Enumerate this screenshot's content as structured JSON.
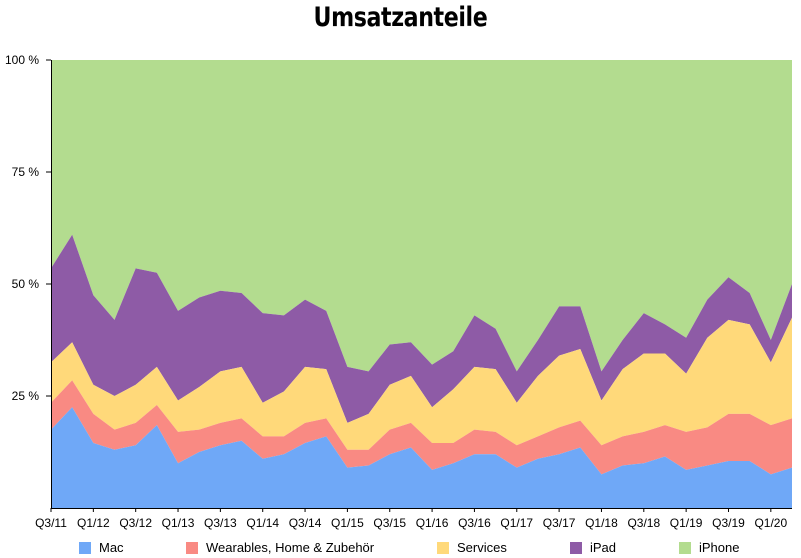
{
  "chart_data": {
    "type": "area",
    "stacked": true,
    "normalized": true,
    "title": "Umsatzanteile",
    "xlabel": "",
    "ylabel": "",
    "ylim": [
      0,
      100
    ],
    "y_ticks": [
      "100 %",
      "75 %",
      "50 %",
      "25 %"
    ],
    "x_tick_labels": [
      "Q3/11",
      "Q1/12",
      "Q3/12",
      "Q1/13",
      "Q3/13",
      "Q1/14",
      "Q3/14",
      "Q1/15",
      "Q3/15",
      "Q1/16",
      "Q3/16",
      "Q1/17",
      "Q3/17",
      "Q1/18",
      "Q3/18",
      "Q1/19",
      "Q3/19",
      "Q1/20"
    ],
    "x": [
      "Q3/11",
      "Q4/11",
      "Q1/12",
      "Q2/12",
      "Q3/12",
      "Q4/12",
      "Q1/13",
      "Q2/13",
      "Q3/13",
      "Q4/13",
      "Q1/14",
      "Q2/14",
      "Q3/14",
      "Q4/14",
      "Q1/15",
      "Q2/15",
      "Q3/15",
      "Q4/15",
      "Q1/16",
      "Q2/16",
      "Q3/16",
      "Q4/16",
      "Q1/17",
      "Q2/17",
      "Q3/17",
      "Q4/17",
      "Q1/18",
      "Q2/18",
      "Q3/18",
      "Q4/18",
      "Q1/19",
      "Q2/19",
      "Q3/19",
      "Q4/19",
      "Q1/20",
      "Q2/20"
    ],
    "series": [
      {
        "name": "Mac",
        "color": "#6fa8f7",
        "values": [
          17.5,
          22.5,
          14.5,
          13,
          14,
          18.5,
          10,
          12.5,
          14,
          15,
          11,
          12,
          14.5,
          16,
          9,
          9.5,
          12,
          13.5,
          8.5,
          10,
          12,
          12,
          9,
          11,
          12,
          13.5,
          7.5,
          9.5,
          10,
          11.5,
          8.5,
          9.5,
          10.5,
          10.5,
          7.5,
          9
        ]
      },
      {
        "name": "Wearables, Home & Zubehör",
        "color": "#f98a83",
        "values": [
          6,
          6,
          6.5,
          4.5,
          5,
          4.5,
          7,
          5,
          5,
          5,
          5,
          4,
          4.5,
          4,
          4,
          3.5,
          5.5,
          5.5,
          6,
          4.5,
          5.5,
          5,
          5,
          5,
          6,
          6,
          6.5,
          6.5,
          7,
          7,
          8.5,
          8.5,
          10.5,
          10.5,
          11,
          11
        ]
      },
      {
        "name": "Services",
        "color": "#ffd97a",
        "values": [
          9,
          8.5,
          6.5,
          7.5,
          8.5,
          8.5,
          7,
          9.5,
          11.5,
          11.5,
          7.5,
          10,
          12.5,
          11,
          6,
          8,
          10,
          10.5,
          8,
          12,
          14,
          14,
          9.5,
          13.5,
          16,
          16,
          10,
          15,
          17.5,
          16,
          13,
          20,
          21,
          20,
          14,
          22.5
        ]
      },
      {
        "name": "iPad",
        "color": "#8e5ba6",
        "values": [
          21,
          24,
          20,
          17,
          26,
          21,
          20,
          20,
          18,
          16.5,
          20,
          17,
          15,
          13,
          12.5,
          9.5,
          9,
          7.5,
          9.5,
          8.5,
          11.5,
          9,
          7,
          8,
          11,
          9.5,
          6.5,
          6.5,
          9,
          6.5,
          8,
          8.5,
          9.5,
          7,
          5,
          7.5
        ]
      },
      {
        "name": "iPhone",
        "color": "#b3dc8f",
        "values": [
          46.5,
          39,
          52.5,
          58,
          46.5,
          47.5,
          56,
          53,
          51.5,
          52,
          56.5,
          57,
          53.5,
          56,
          68.5,
          69.5,
          63.5,
          63,
          68,
          65,
          57,
          60,
          69.5,
          62.5,
          55,
          55,
          69.5,
          62.5,
          56.5,
          59,
          62,
          53.5,
          48.5,
          52,
          62.5,
          50
        ]
      }
    ],
    "legend_position": "bottom",
    "grid": false
  }
}
